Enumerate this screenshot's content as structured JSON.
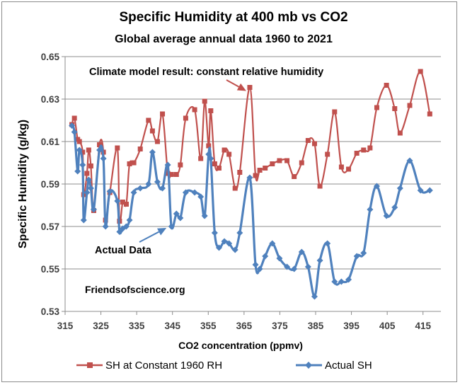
{
  "chart_data": {
    "type": "line",
    "title": "Specific Humidity  at 400 mb vs CO2",
    "subtitle": "Global average annual data 1960 to 2021",
    "xlabel": "CO2 concentration (ppmv)",
    "ylabel": "Specific Humidity (g/kg)",
    "xlim": [
      315,
      420
    ],
    "ylim": [
      0.53,
      0.65
    ],
    "xticks": [
      "315",
      "325",
      "335",
      "345",
      "355",
      "365",
      "375",
      "385",
      "395",
      "405",
      "415"
    ],
    "yticks": [
      "0.53",
      "0.55",
      "0.57",
      "0.59",
      "0.61",
      "0.63",
      "0.65"
    ],
    "grid": "horizontal",
    "legend_position": "bottom",
    "series": [
      {
        "name": "SH at Constant 1960 RH",
        "color": "#c0504d",
        "marker": "square",
        "points": [
          [
            316.9,
            0.618
          ],
          [
            317.6,
            0.621
          ],
          [
            318.5,
            0.611
          ],
          [
            319.0,
            0.61
          ],
          [
            319.9,
            0.605
          ],
          [
            320.2,
            0.585
          ],
          [
            321.1,
            0.595
          ],
          [
            321.6,
            0.606
          ],
          [
            322.2,
            0.5985
          ],
          [
            323.0,
            0.5775
          ],
          [
            324.6,
            0.6085
          ],
          [
            325.7,
            0.605
          ],
          [
            326.3,
            0.573
          ],
          [
            327.5,
            0.586
          ],
          [
            329.6,
            0.607
          ],
          [
            330.2,
            0.5725
          ],
          [
            331.1,
            0.5815
          ],
          [
            332.1,
            0.5805
          ],
          [
            333.0,
            0.5995
          ],
          [
            334.2,
            0.6
          ],
          [
            336.0,
            0.6065
          ],
          [
            338.3,
            0.62
          ],
          [
            339.4,
            0.615
          ],
          [
            340.8,
            0.61
          ],
          [
            342.2,
            0.623
          ],
          [
            343.7,
            0.595
          ],
          [
            344.7,
            0.5945
          ],
          [
            346.1,
            0.5945
          ],
          [
            347.2,
            0.599
          ],
          [
            348.7,
            0.621
          ],
          [
            351.2,
            0.625
          ],
          [
            352.9,
            0.602
          ],
          [
            354.0,
            0.629
          ],
          [
            355.1,
            0.608
          ],
          [
            355.7,
            0.6245
          ],
          [
            356.8,
            0.5995
          ],
          [
            358.0,
            0.5975
          ],
          [
            359.5,
            0.606
          ],
          [
            360.8,
            0.604
          ],
          [
            362.5,
            0.588
          ],
          [
            363.8,
            0.5955
          ],
          [
            366.6,
            0.6355
          ],
          [
            368.2,
            0.594
          ],
          [
            369.4,
            0.5965
          ],
          [
            370.9,
            0.5975
          ],
          [
            372.9,
            0.5995
          ],
          [
            374.9,
            0.601
          ],
          [
            377.0,
            0.601
          ],
          [
            379.0,
            0.5935
          ],
          [
            381.1,
            0.6
          ],
          [
            382.9,
            0.6105
          ],
          [
            384.7,
            0.609
          ],
          [
            386.2,
            0.589
          ],
          [
            388.3,
            0.604
          ],
          [
            390.3,
            0.624
          ],
          [
            392.2,
            0.598
          ],
          [
            394.2,
            0.597
          ],
          [
            396.5,
            0.6045
          ],
          [
            398.4,
            0.606
          ],
          [
            400.2,
            0.607
          ],
          [
            402.1,
            0.626
          ],
          [
            404.8,
            0.6365
          ],
          [
            407.1,
            0.6255
          ],
          [
            408.6,
            0.614
          ],
          [
            411.3,
            0.627
          ],
          [
            414.3,
            0.643
          ],
          [
            416.9,
            0.623
          ]
        ]
      },
      {
        "name": "Actual SH",
        "color": "#4f81bd",
        "marker": "diamond",
        "points": [
          [
            316.9,
            0.6175
          ],
          [
            317.6,
            0.6145
          ],
          [
            318.5,
            0.596
          ],
          [
            319.0,
            0.606
          ],
          [
            319.9,
            0.599
          ],
          [
            320.2,
            0.573
          ],
          [
            321.1,
            0.586
          ],
          [
            321.6,
            0.592
          ],
          [
            322.2,
            0.588
          ],
          [
            323.0,
            0.578
          ],
          [
            324.6,
            0.606
          ],
          [
            325.7,
            0.602
          ],
          [
            326.3,
            0.57
          ],
          [
            327.5,
            0.5865
          ],
          [
            329.6,
            0.582
          ],
          [
            330.2,
            0.5675
          ],
          [
            331.1,
            0.569
          ],
          [
            332.1,
            0.57
          ],
          [
            333.0,
            0.573
          ],
          [
            334.2,
            0.586
          ],
          [
            336.0,
            0.588
          ],
          [
            338.3,
            0.59
          ],
          [
            339.4,
            0.605
          ],
          [
            340.8,
            0.591
          ],
          [
            342.2,
            0.588
          ],
          [
            343.7,
            0.599
          ],
          [
            344.7,
            0.57
          ],
          [
            346.1,
            0.576
          ],
          [
            347.2,
            0.574
          ],
          [
            348.7,
            0.586
          ],
          [
            351.2,
            0.586
          ],
          [
            352.9,
            0.584
          ],
          [
            354.0,
            0.575
          ],
          [
            355.1,
            0.604
          ],
          [
            355.7,
            0.602
          ],
          [
            356.8,
            0.567
          ],
          [
            358.0,
            0.56
          ],
          [
            359.5,
            0.563
          ],
          [
            360.8,
            0.562
          ],
          [
            362.5,
            0.559
          ],
          [
            363.8,
            0.567
          ],
          [
            366.6,
            0.593
          ],
          [
            368.2,
            0.552
          ],
          [
            369.4,
            0.55
          ],
          [
            370.9,
            0.556
          ],
          [
            372.9,
            0.562
          ],
          [
            374.9,
            0.555
          ],
          [
            377.0,
            0.551
          ],
          [
            379.0,
            0.55
          ],
          [
            381.1,
            0.558
          ],
          [
            382.9,
            0.551
          ],
          [
            384.7,
            0.537
          ],
          [
            386.2,
            0.554
          ],
          [
            388.3,
            0.562
          ],
          [
            390.3,
            0.544
          ],
          [
            392.2,
            0.544
          ],
          [
            394.2,
            0.545
          ],
          [
            396.5,
            0.556
          ],
          [
            398.4,
            0.5575
          ],
          [
            400.2,
            0.578
          ],
          [
            402.1,
            0.589
          ],
          [
            404.8,
            0.575
          ],
          [
            407.1,
            0.579
          ],
          [
            408.6,
            0.588
          ],
          [
            411.3,
            0.601
          ],
          [
            414.3,
            0.587
          ],
          [
            416.9,
            0.587
          ]
        ]
      }
    ],
    "annotations": [
      {
        "text": "Climate model result: constant relative humidity",
        "arrow_to": [
          366.6,
          0.6355
        ],
        "color": "#c0504d"
      },
      {
        "text": "Actual  Data",
        "arrow_to": [
          344.7,
          0.57
        ],
        "color": "#4f81bd"
      },
      {
        "text": "Friendsofscience.org"
      }
    ]
  }
}
